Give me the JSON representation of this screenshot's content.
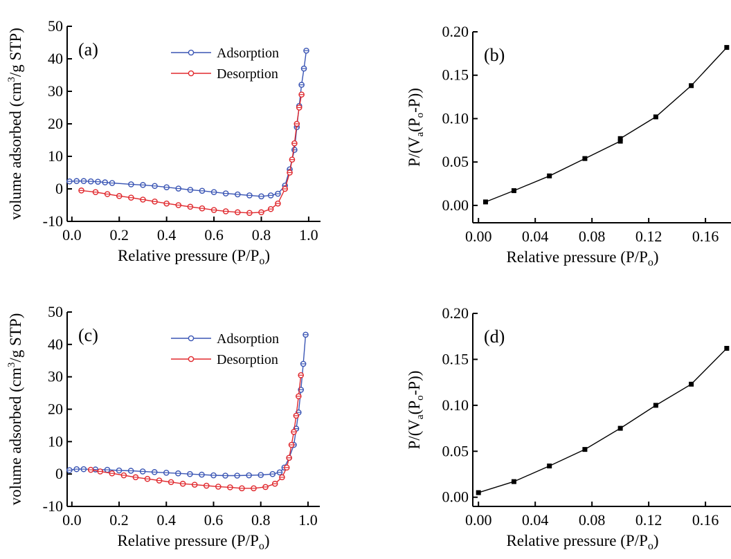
{
  "chart_data": [
    {
      "type": "line",
      "panel_label": "(a)",
      "xlabel": "Relative pressure (P/P",
      "xlabel_sub": "o",
      "xlabel_end": ")",
      "ylabel": "volume adsorbed (cm",
      "ylabel_sup": "3",
      "ylabel_end": "/g STP)",
      "xlim": [
        -0.02,
        1.05
      ],
      "ylim": [
        -10,
        50
      ],
      "xticks": [
        0.0,
        0.2,
        0.4,
        0.6,
        0.8,
        1.0
      ],
      "xtick_labels": [
        "0.0",
        "0.2",
        "0.4",
        "0.6",
        "0.8",
        "1.0"
      ],
      "yticks": [
        -10,
        0,
        10,
        20,
        30,
        40,
        50
      ],
      "ytick_labels": [
        "-10",
        "0",
        "10",
        "20",
        "30",
        "40",
        "50"
      ],
      "legend_position": "top-center",
      "series": [
        {
          "name": "Adsorption",
          "color": "#3a55b4",
          "x": [
            -0.01,
            0.02,
            0.05,
            0.08,
            0.11,
            0.14,
            0.17,
            0.25,
            0.3,
            0.35,
            0.4,
            0.45,
            0.5,
            0.55,
            0.6,
            0.65,
            0.7,
            0.75,
            0.8,
            0.84,
            0.87,
            0.9,
            0.92,
            0.94,
            0.95,
            0.96,
            0.97,
            0.98,
            0.99
          ],
          "y": [
            2.3,
            2.4,
            2.4,
            2.3,
            2.2,
            2.0,
            1.8,
            1.4,
            1.2,
            0.9,
            0.5,
            0.1,
            -0.3,
            -0.6,
            -1.0,
            -1.4,
            -1.7,
            -2.0,
            -2.3,
            -2.0,
            -1.5,
            1.0,
            6.0,
            12.0,
            19.0,
            25.5,
            32.0,
            37.0,
            42.5
          ]
        },
        {
          "name": "Desorption",
          "color": "#e0282d",
          "x": [
            0.04,
            0.1,
            0.15,
            0.2,
            0.25,
            0.3,
            0.35,
            0.4,
            0.45,
            0.5,
            0.55,
            0.6,
            0.65,
            0.7,
            0.75,
            0.8,
            0.84,
            0.87,
            0.9,
            0.92,
            0.93,
            0.94,
            0.95,
            0.96,
            0.97
          ],
          "y": [
            -0.5,
            -1.0,
            -1.6,
            -2.2,
            -2.7,
            -3.3,
            -3.9,
            -4.5,
            -5.0,
            -5.5,
            -6.0,
            -6.5,
            -6.9,
            -7.2,
            -7.4,
            -7.2,
            -6.2,
            -4.5,
            0.0,
            5.0,
            9.0,
            14.0,
            20.0,
            25.0,
            29.0
          ]
        }
      ]
    },
    {
      "type": "line",
      "panel_label": "(b)",
      "xlabel": "Relative pressure (P/P",
      "xlabel_sub": "o",
      "xlabel_end": ")",
      "ylabel": "P/(V",
      "ylabel_sub1": "a",
      "ylabel_mid": "(P",
      "ylabel_sub2": "o",
      "ylabel_end": "-P))",
      "xlim": [
        -0.004,
        0.178
      ],
      "ylim": [
        -0.02,
        0.2
      ],
      "xticks": [
        0.0,
        0.04,
        0.08,
        0.12,
        0.16
      ],
      "xtick_labels": [
        "0.00",
        "0.04",
        "0.08",
        "0.12",
        "0.16"
      ],
      "yticks": [
        0.0,
        0.05,
        0.1,
        0.15,
        0.2
      ],
      "ytick_labels": [
        "0.00",
        "0.05",
        "0.10",
        "0.15",
        "0.20"
      ],
      "series": [
        {
          "color": "#000000",
          "x": [
            0.005,
            0.025,
            0.05,
            0.075,
            0.1,
            0.1,
            0.125,
            0.15,
            0.175
          ],
          "y": [
            0.004,
            0.017,
            0.034,
            0.054,
            0.074,
            0.077,
            0.102,
            0.138,
            0.182
          ]
        }
      ]
    },
    {
      "type": "line",
      "panel_label": "(c)",
      "xlabel": "Relative pressure (P/P",
      "xlabel_sub": "o",
      "xlabel_end": ")",
      "ylabel": "volume adsorbed (cm",
      "ylabel_sup": "3",
      "ylabel_end": "/g STP)",
      "xlim": [
        -0.02,
        1.05
      ],
      "ylim": [
        -10,
        50
      ],
      "xticks": [
        0.0,
        0.2,
        0.4,
        0.6,
        0.8,
        1.0
      ],
      "xtick_labels": [
        "0.0",
        "0.2",
        "0.4",
        "0.6",
        "0.8",
        "1.0"
      ],
      "yticks": [
        -10,
        0,
        10,
        20,
        30,
        40,
        50
      ],
      "ytick_labels": [
        "-10",
        "0",
        "10",
        "20",
        "30",
        "40",
        "50"
      ],
      "legend_position": "top-center",
      "series": [
        {
          "name": "Adsorption",
          "color": "#3a55b4",
          "x": [
            -0.01,
            0.02,
            0.05,
            0.1,
            0.15,
            0.2,
            0.25,
            0.3,
            0.35,
            0.4,
            0.45,
            0.5,
            0.55,
            0.6,
            0.65,
            0.7,
            0.75,
            0.8,
            0.85,
            0.88,
            0.9,
            0.92,
            0.94,
            0.95,
            0.96,
            0.97,
            0.98,
            0.99
          ],
          "y": [
            1.2,
            1.5,
            1.5,
            1.4,
            1.3,
            1.1,
            1.0,
            0.8,
            0.6,
            0.4,
            0.2,
            0.0,
            -0.2,
            -0.4,
            -0.5,
            -0.5,
            -0.4,
            -0.3,
            0.0,
            0.5,
            2.0,
            5.0,
            9.0,
            14.0,
            19.0,
            26.0,
            34.0,
            43.0
          ]
        },
        {
          "name": "Desorption",
          "color": "#e0282d",
          "x": [
            0.08,
            0.12,
            0.17,
            0.22,
            0.27,
            0.32,
            0.37,
            0.42,
            0.47,
            0.52,
            0.57,
            0.62,
            0.67,
            0.72,
            0.77,
            0.82,
            0.86,
            0.89,
            0.91,
            0.92,
            0.93,
            0.94,
            0.95,
            0.96,
            0.97
          ],
          "y": [
            1.3,
            0.8,
            0.2,
            -0.4,
            -1.0,
            -1.5,
            -2.0,
            -2.5,
            -3.0,
            -3.3,
            -3.6,
            -3.9,
            -4.1,
            -4.4,
            -4.4,
            -4.0,
            -3.0,
            -1.0,
            2.0,
            5.0,
            9.0,
            13.0,
            18.0,
            24.0,
            30.5
          ]
        }
      ]
    },
    {
      "type": "line",
      "panel_label": "(d)",
      "xlabel": "Relative pressure (P/P",
      "xlabel_sub": "o",
      "xlabel_end": ")",
      "ylabel": "P/(V",
      "ylabel_sub1": "a",
      "ylabel_mid": "(P",
      "ylabel_sub2": "o",
      "ylabel_end": "-P))",
      "xlim": [
        -0.004,
        0.178
      ],
      "ylim": [
        -0.01,
        0.2
      ],
      "xticks": [
        0.0,
        0.04,
        0.08,
        0.12,
        0.16
      ],
      "xtick_labels": [
        "0.00",
        "0.04",
        "0.08",
        "0.12",
        "0.16"
      ],
      "yticks": [
        0.0,
        0.05,
        0.1,
        0.15,
        0.2
      ],
      "ytick_labels": [
        "0.00",
        "0.05",
        "0.10",
        "0.15",
        "0.20"
      ],
      "series": [
        {
          "color": "#000000",
          "x": [
            0.0,
            0.025,
            0.05,
            0.075,
            0.1,
            0.125,
            0.15,
            0.175
          ],
          "y": [
            0.005,
            0.017,
            0.034,
            0.052,
            0.075,
            0.1,
            0.123,
            0.162
          ]
        }
      ]
    }
  ]
}
